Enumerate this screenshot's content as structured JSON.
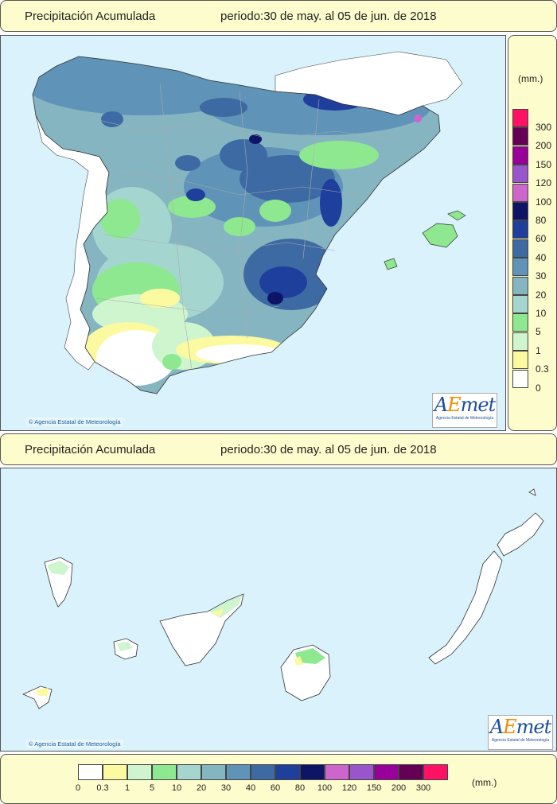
{
  "top_title": {
    "label": "Precipitación Acumulada",
    "period": "periodo:30 de may. al 05 de jun. de 2018"
  },
  "bottom_title": {
    "label": "Precipitación Acumulada",
    "period": "periodo:30 de may. al 05 de jun. de 2018"
  },
  "credit": "Agencia Estatal de Meteorología",
  "logo": {
    "mark_a": "A",
    "mark_e": "E",
    "mark_rest": "met",
    "subtitle": "Agencia Estatal de Meteorología"
  },
  "legend": {
    "unit": "(mm.)",
    "classes": [
      {
        "label": "0",
        "color": "#ffffff"
      },
      {
        "label": "0.3",
        "color": "#fbfaa0"
      },
      {
        "label": "1",
        "color": "#cff5cf"
      },
      {
        "label": "5",
        "color": "#8ee890"
      },
      {
        "label": "10",
        "color": "#a4d6cf"
      },
      {
        "label": "20",
        "color": "#86b5c2"
      },
      {
        "label": "30",
        "color": "#5f93b8"
      },
      {
        "label": "40",
        "color": "#3e6aa4"
      },
      {
        "label": "60",
        "color": "#1f3f9c"
      },
      {
        "label": "80",
        "color": "#0e1566"
      },
      {
        "label": "100",
        "color": "#cc66cc"
      },
      {
        "label": "120",
        "color": "#9955cc"
      },
      {
        "label": "150",
        "color": "#990099"
      },
      {
        "label": "200",
        "color": "#660055"
      },
      {
        "label": "300",
        "color": "#ff1166"
      }
    ]
  }
}
